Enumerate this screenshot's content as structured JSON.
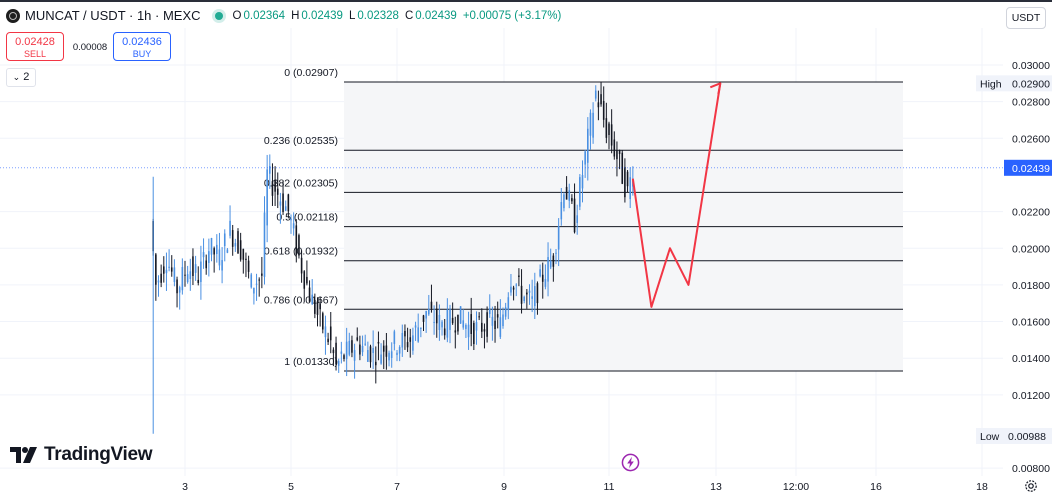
{
  "header": {
    "title": "MUNCAT / USDT · 1h · MEXC",
    "ohlc": [
      {
        "label": "O",
        "value": "0.02364"
      },
      {
        "label": "H",
        "value": "0.02439"
      },
      {
        "label": "L",
        "value": "0.02328"
      },
      {
        "label": "C",
        "value": "0.02439"
      }
    ],
    "change": "+0.00075 (+3.17%)"
  },
  "trade": {
    "sell_price": "0.02428",
    "sell_label": "SELL",
    "spread": "0.00008",
    "buy_price": "0.02436",
    "buy_label": "BUY"
  },
  "indicator_toggle": "2",
  "currency": "USDT",
  "logo_text": "TradingView",
  "colors": {
    "up": "#089981",
    "down": "#f23645",
    "candle": "#131722",
    "wick_up": "#4a90e2",
    "arrow": "#f23645",
    "accent": "#2962ff"
  },
  "icons": [
    "symbol-logo-icon",
    "live-status-dot",
    "tradingview-logo-icon",
    "bolt-event-icon",
    "settings-gear-icon"
  ],
  "chart_data": {
    "type": "candlestick",
    "y_axis": {
      "ticks": [
        "0.03000",
        "0.02800",
        "0.02600",
        "0.02200",
        "0.02000",
        "0.01800",
        "0.01600",
        "0.01400",
        "0.01200",
        "0.00800"
      ],
      "ylim": [
        0.008,
        0.031
      ],
      "scale": "linear"
    },
    "x_axis": {
      "ticks": [
        "3",
        "5",
        "7",
        "9",
        "11",
        "13",
        "12:00",
        "16",
        "18"
      ]
    },
    "price_labels": {
      "high": {
        "label": "High",
        "value": "0.02900"
      },
      "current": {
        "value": "0.02439"
      },
      "low": {
        "label": "Low",
        "value": "0.00988"
      }
    },
    "fibonacci": [
      {
        "ratio": "0",
        "price": "0.02907"
      },
      {
        "ratio": "0.236",
        "price": "0.02535"
      },
      {
        "ratio": "0.382",
        "price": "0.02305"
      },
      {
        "ratio": "0.5",
        "price": "0.02118"
      },
      {
        "ratio": "0.618",
        "price": "0.01932"
      },
      {
        "ratio": "0.786",
        "price": "0.01667"
      },
      {
        "ratio": "1",
        "price": "0.01330"
      }
    ],
    "closes": [
      {
        "day": 2.4,
        "price": 0.0215
      },
      {
        "day": 2.5,
        "price": 0.018
      },
      {
        "day": 2.7,
        "price": 0.0195
      },
      {
        "day": 2.9,
        "price": 0.0178
      },
      {
        "day": 3.1,
        "price": 0.019
      },
      {
        "day": 3.3,
        "price": 0.0185
      },
      {
        "day": 3.5,
        "price": 0.02
      },
      {
        "day": 3.7,
        "price": 0.0195
      },
      {
        "day": 3.9,
        "price": 0.021
      },
      {
        "day": 4.1,
        "price": 0.02
      },
      {
        "day": 4.3,
        "price": 0.018
      },
      {
        "day": 4.5,
        "price": 0.0185
      },
      {
        "day": 4.6,
        "price": 0.024
      },
      {
        "day": 4.8,
        "price": 0.023
      },
      {
        "day": 5.0,
        "price": 0.022
      },
      {
        "day": 5.2,
        "price": 0.0195
      },
      {
        "day": 5.4,
        "price": 0.0175
      },
      {
        "day": 5.6,
        "price": 0.016
      },
      {
        "day": 5.8,
        "price": 0.0148
      },
      {
        "day": 5.9,
        "price": 0.0135
      },
      {
        "day": 6.0,
        "price": 0.014
      },
      {
        "day": 6.3,
        "price": 0.0148
      },
      {
        "day": 6.6,
        "price": 0.0143
      },
      {
        "day": 7.0,
        "price": 0.0148
      },
      {
        "day": 7.3,
        "price": 0.015
      },
      {
        "day": 7.6,
        "price": 0.0165
      },
      {
        "day": 7.9,
        "price": 0.0158
      },
      {
        "day": 8.2,
        "price": 0.0162
      },
      {
        "day": 8.5,
        "price": 0.0155
      },
      {
        "day": 8.8,
        "price": 0.016
      },
      {
        "day": 9.0,
        "price": 0.0158
      },
      {
        "day": 9.2,
        "price": 0.0185
      },
      {
        "day": 9.4,
        "price": 0.0175
      },
      {
        "day": 9.6,
        "price": 0.017
      },
      {
        "day": 9.8,
        "price": 0.0185
      },
      {
        "day": 10.0,
        "price": 0.0195
      },
      {
        "day": 10.2,
        "price": 0.0235
      },
      {
        "day": 10.4,
        "price": 0.0215
      },
      {
        "day": 10.6,
        "price": 0.025
      },
      {
        "day": 10.8,
        "price": 0.0285
      },
      {
        "day": 11.0,
        "price": 0.0265
      },
      {
        "day": 11.2,
        "price": 0.025
      },
      {
        "day": 11.4,
        "price": 0.023
      },
      {
        "day": 11.5,
        "price": 0.02439
      }
    ],
    "projection_arrow": [
      {
        "day": 11.45,
        "price": 0.0238
      },
      {
        "day": 11.8,
        "price": 0.0168
      },
      {
        "day": 12.15,
        "price": 0.02
      },
      {
        "day": 12.5,
        "price": 0.018
      },
      {
        "day": 13.1,
        "price": 0.029
      }
    ]
  }
}
